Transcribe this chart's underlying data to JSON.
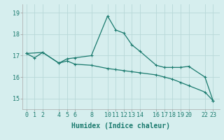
{
  "xlabel": "Humidex (Indice chaleur)",
  "background_color": "#d6eeee",
  "line_color": "#1a7a6e",
  "grid_color": "#b8d8d8",
  "xlim": [
    -0.5,
    23.8
  ],
  "ylim": [
    14.5,
    19.4
  ],
  "line1_x": [
    0,
    1,
    2,
    4,
    5,
    6,
    8,
    10,
    11,
    12,
    13,
    14,
    16,
    17,
    18,
    19,
    20,
    22,
    23
  ],
  "line1_y": [
    17.1,
    16.9,
    17.15,
    16.65,
    16.85,
    16.9,
    17.0,
    18.85,
    18.2,
    18.05,
    17.5,
    17.2,
    16.55,
    16.45,
    16.45,
    16.45,
    16.5,
    16.0,
    14.9
  ],
  "line2_x": [
    0,
    2,
    4,
    5,
    6,
    8,
    10,
    11,
    12,
    13,
    14,
    16,
    17,
    18,
    19,
    20,
    22,
    23
  ],
  "line2_y": [
    17.1,
    17.15,
    16.65,
    16.75,
    16.6,
    16.55,
    16.4,
    16.35,
    16.3,
    16.25,
    16.2,
    16.1,
    16.0,
    15.9,
    15.75,
    15.6,
    15.3,
    14.9
  ],
  "x_ticks": [
    0,
    1,
    2,
    4,
    5,
    6,
    8,
    10,
    11,
    12,
    13,
    14,
    16,
    17,
    18,
    19,
    20,
    22,
    23
  ],
  "y_ticks": [
    15,
    16,
    17,
    18,
    19
  ],
  "tick_fontsize": 6,
  "label_fontsize": 7
}
